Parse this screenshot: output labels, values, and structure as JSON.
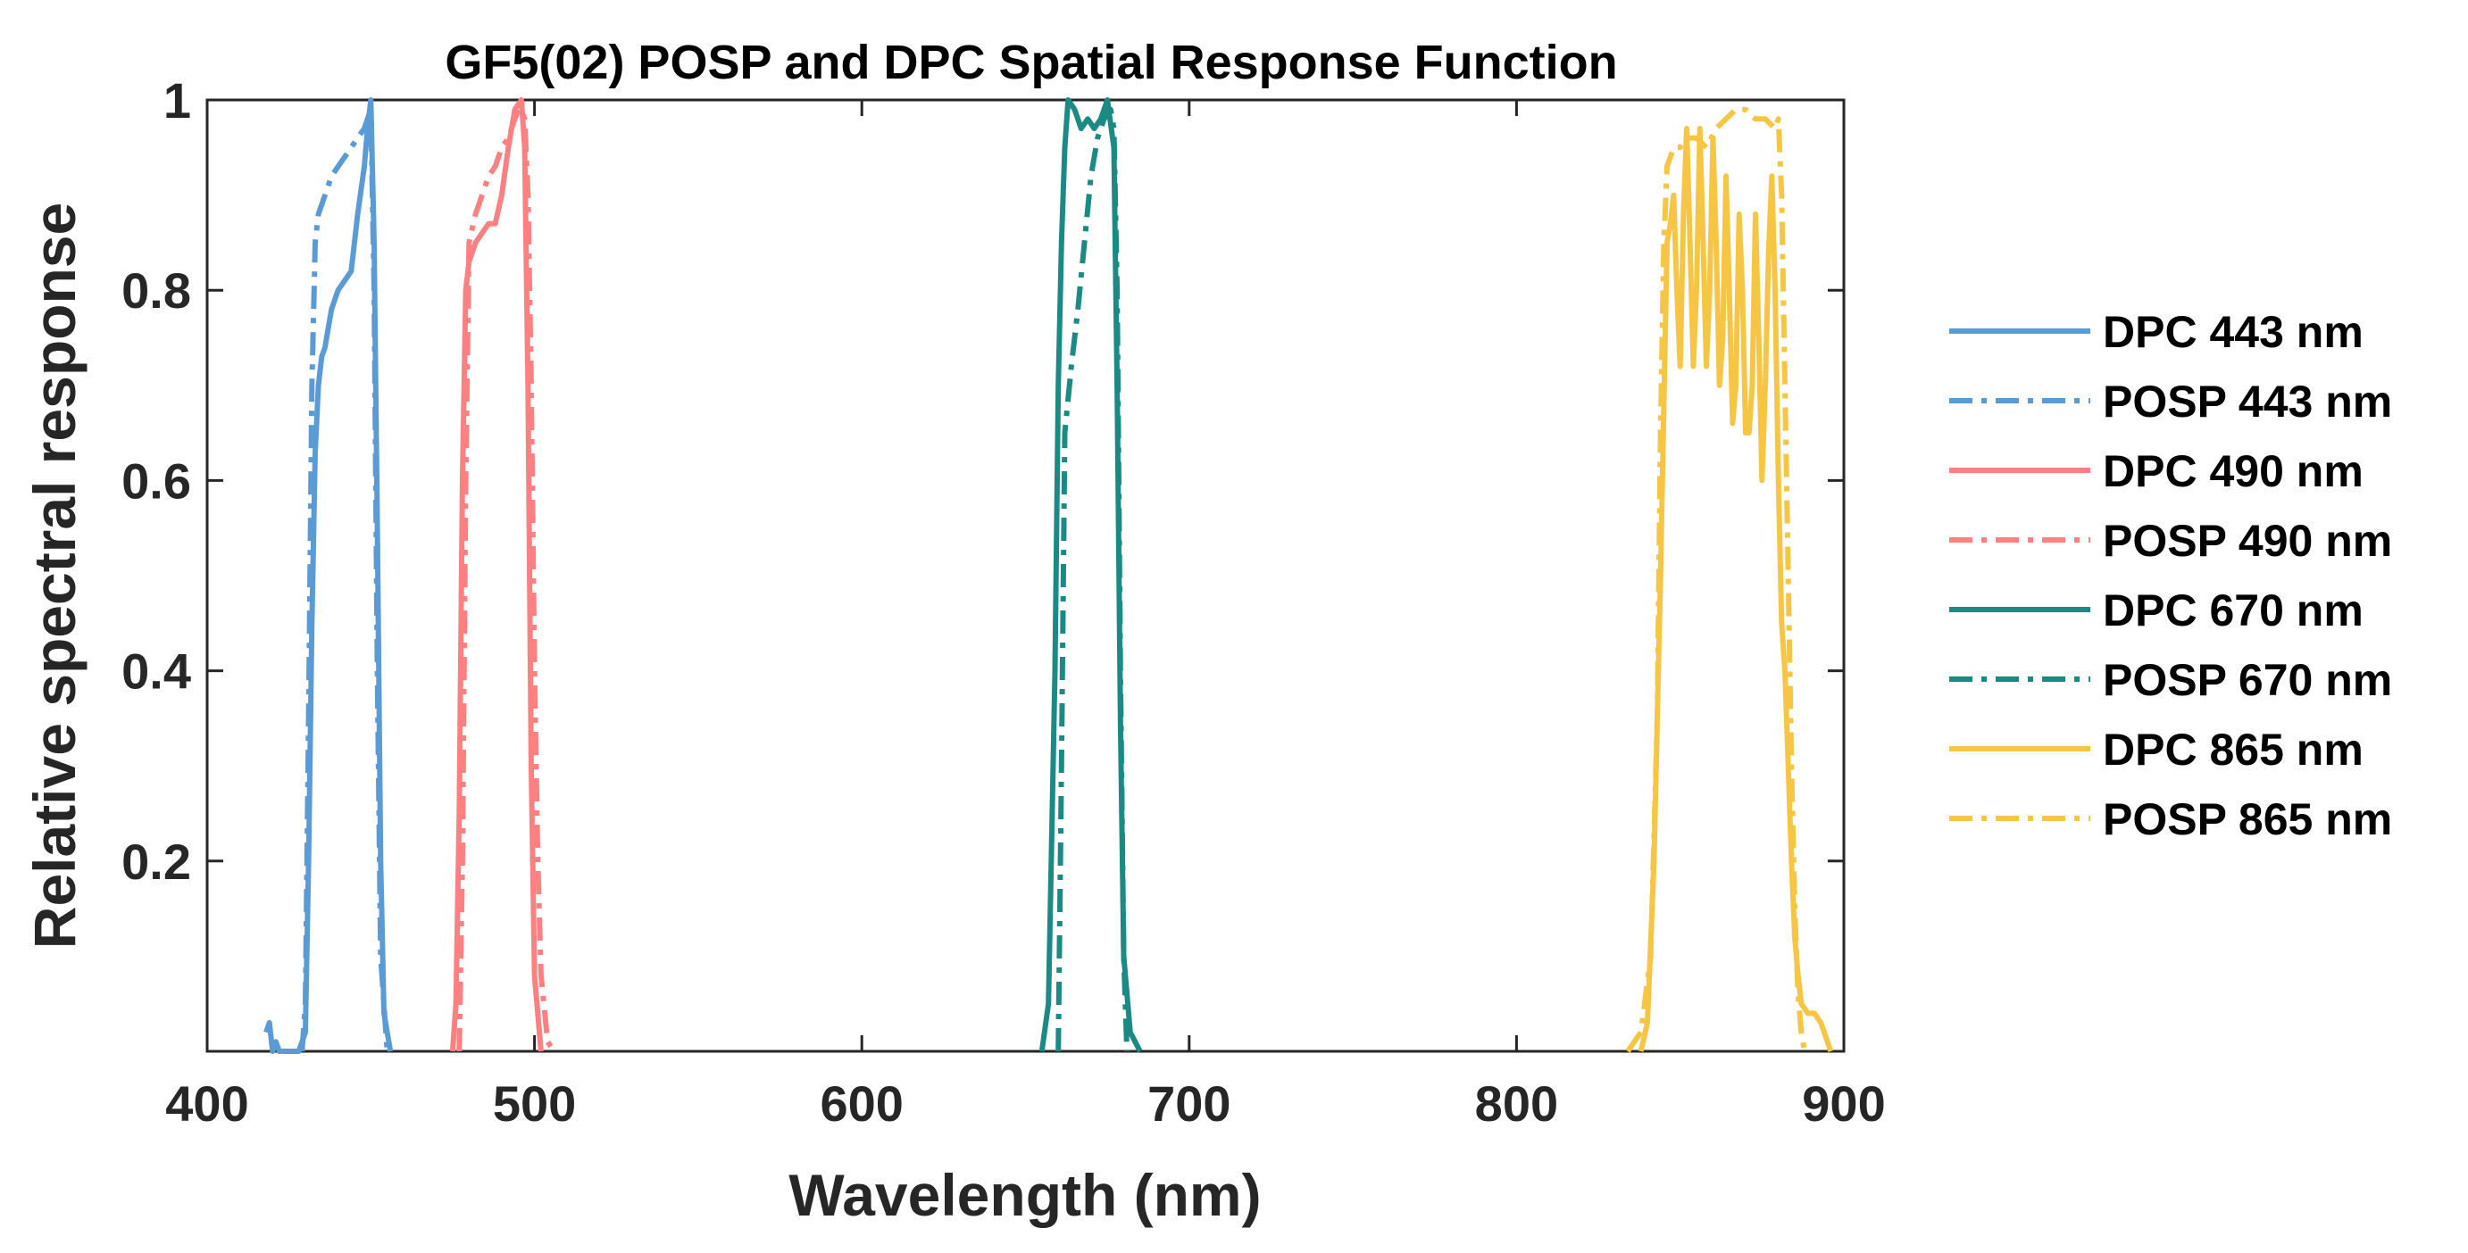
{
  "chart_data": {
    "type": "line",
    "title": "GF5(02) POSP and DPC Spatial Response Function",
    "xlabel": "Wavelength (nm)",
    "ylabel": "Relative spectral response",
    "xlim": [
      400,
      900
    ],
    "ylim": [
      0,
      1
    ],
    "xticks": [
      400,
      500,
      600,
      700,
      800,
      900
    ],
    "xtick_labels": [
      "400",
      "500",
      "600",
      "700",
      "800",
      "900"
    ],
    "yticks": [
      0.2,
      0.4,
      0.6,
      0.8,
      1
    ],
    "ytick_labels": [
      "0.2",
      "0.4",
      "0.6",
      "0.8",
      "1"
    ],
    "grid": false,
    "legend_position": "outside-right",
    "series": [
      {
        "name": "DPC 443 nm",
        "color": "#5B9BD5",
        "style": "solid",
        "points": [
          [
            418,
            0.02
          ],
          [
            419,
            0.03
          ],
          [
            420,
            0.0
          ],
          [
            421,
            0.01
          ],
          [
            422,
            0.0
          ],
          [
            428,
            0.0
          ],
          [
            430,
            0.02
          ],
          [
            431,
            0.2
          ],
          [
            432,
            0.45
          ],
          [
            433,
            0.63
          ],
          [
            434,
            0.7
          ],
          [
            435,
            0.73
          ],
          [
            436,
            0.74
          ],
          [
            437,
            0.76
          ],
          [
            438,
            0.78
          ],
          [
            440,
            0.8
          ],
          [
            442,
            0.81
          ],
          [
            444,
            0.82
          ],
          [
            446,
            0.88
          ],
          [
            448,
            0.93
          ],
          [
            449,
            0.97
          ],
          [
            450,
            1.0
          ],
          [
            451,
            0.85
          ],
          [
            452,
            0.55
          ],
          [
            453,
            0.2
          ],
          [
            454,
            0.04
          ],
          [
            456,
            0.0
          ]
        ]
      },
      {
        "name": "POSP 443 nm",
        "color": "#5B9BD5",
        "style": "dashdot",
        "points": [
          [
            429,
            0.0
          ],
          [
            430,
            0.05
          ],
          [
            431,
            0.35
          ],
          [
            432,
            0.7
          ],
          [
            433,
            0.85
          ],
          [
            434,
            0.88
          ],
          [
            436,
            0.9
          ],
          [
            438,
            0.92
          ],
          [
            440,
            0.93
          ],
          [
            442,
            0.94
          ],
          [
            444,
            0.95
          ],
          [
            446,
            0.96
          ],
          [
            448,
            0.97
          ],
          [
            449,
            0.98
          ],
          [
            450,
            0.99
          ],
          [
            451,
            0.8
          ],
          [
            452,
            0.4
          ],
          [
            453,
            0.1
          ],
          [
            455,
            0.0
          ]
        ]
      },
      {
        "name": "DPC 490 nm",
        "color": "#FF8080",
        "style": "solid",
        "points": [
          [
            475,
            0.0
          ],
          [
            476,
            0.05
          ],
          [
            477,
            0.25
          ],
          [
            478,
            0.6
          ],
          [
            479,
            0.8
          ],
          [
            480,
            0.83
          ],
          [
            482,
            0.85
          ],
          [
            484,
            0.86
          ],
          [
            486,
            0.87
          ],
          [
            488,
            0.87
          ],
          [
            490,
            0.9
          ],
          [
            492,
            0.95
          ],
          [
            494,
            0.99
          ],
          [
            496,
            1.0
          ],
          [
            497,
            0.95
          ],
          [
            498,
            0.7
          ],
          [
            499,
            0.3
          ],
          [
            500,
            0.08
          ],
          [
            502,
            0.0
          ]
        ]
      },
      {
        "name": "POSP 490 nm",
        "color": "#FF8080",
        "style": "dashdot",
        "points": [
          [
            477,
            0.0
          ],
          [
            478,
            0.2
          ],
          [
            479,
            0.6
          ],
          [
            480,
            0.85
          ],
          [
            482,
            0.88
          ],
          [
            484,
            0.9
          ],
          [
            486,
            0.92
          ],
          [
            488,
            0.93
          ],
          [
            490,
            0.95
          ],
          [
            492,
            0.96
          ],
          [
            494,
            0.98
          ],
          [
            495,
            0.99
          ],
          [
            496,
            0.99
          ],
          [
            497,
            0.98
          ],
          [
            498,
            0.9
          ],
          [
            499,
            0.7
          ],
          [
            500,
            0.4
          ],
          [
            501,
            0.2
          ],
          [
            502,
            0.08
          ],
          [
            504,
            0.01
          ],
          [
            506,
            0.0
          ]
        ]
      },
      {
        "name": "DPC 670 nm",
        "color": "#1B8A85",
        "style": "solid",
        "points": [
          [
            655,
            0.0
          ],
          [
            657,
            0.05
          ],
          [
            659,
            0.4
          ],
          [
            660,
            0.7
          ],
          [
            661,
            0.85
          ],
          [
            662,
            0.95
          ],
          [
            663,
            1.0
          ],
          [
            665,
            0.99
          ],
          [
            667,
            0.97
          ],
          [
            669,
            0.98
          ],
          [
            671,
            0.97
          ],
          [
            673,
            0.98
          ],
          [
            675,
            1.0
          ],
          [
            677,
            0.95
          ],
          [
            678,
            0.7
          ],
          [
            679,
            0.35
          ],
          [
            680,
            0.1
          ],
          [
            682,
            0.02
          ],
          [
            685,
            0.0
          ]
        ]
      },
      {
        "name": "POSP 670 nm",
        "color": "#1B8A85",
        "style": "dashdot",
        "points": [
          [
            660,
            0.0
          ],
          [
            661,
            0.3
          ],
          [
            662,
            0.65
          ],
          [
            664,
            0.72
          ],
          [
            666,
            0.78
          ],
          [
            668,
            0.85
          ],
          [
            670,
            0.92
          ],
          [
            672,
            0.96
          ],
          [
            674,
            0.98
          ],
          [
            676,
            0.99
          ],
          [
            677,
            0.97
          ],
          [
            678,
            0.8
          ],
          [
            679,
            0.4
          ],
          [
            680,
            0.1
          ],
          [
            681,
            0.0
          ]
        ]
      },
      {
        "name": "DPC 865 nm",
        "color": "#F7C544",
        "style": "solid",
        "points": [
          [
            838,
            0.0
          ],
          [
            840,
            0.03
          ],
          [
            842,
            0.2
          ],
          [
            844,
            0.5
          ],
          [
            846,
            0.85
          ],
          [
            847,
            0.87
          ],
          [
            848,
            0.9
          ],
          [
            849,
            0.8
          ],
          [
            850,
            0.72
          ],
          [
            851,
            0.88
          ],
          [
            852,
            0.97
          ],
          [
            853,
            0.85
          ],
          [
            854,
            0.72
          ],
          [
            855,
            0.8
          ],
          [
            856,
            0.97
          ],
          [
            857,
            0.85
          ],
          [
            858,
            0.72
          ],
          [
            859,
            0.8
          ],
          [
            860,
            0.96
          ],
          [
            861,
            0.85
          ],
          [
            862,
            0.7
          ],
          [
            863,
            0.75
          ],
          [
            864,
            0.92
          ],
          [
            865,
            0.8
          ],
          [
            866,
            0.66
          ],
          [
            867,
            0.7
          ],
          [
            868,
            0.88
          ],
          [
            869,
            0.8
          ],
          [
            870,
            0.65
          ],
          [
            871,
            0.65
          ],
          [
            872,
            0.7
          ],
          [
            873,
            0.88
          ],
          [
            874,
            0.75
          ],
          [
            875,
            0.6
          ],
          [
            876,
            0.7
          ],
          [
            877,
            0.84
          ],
          [
            878,
            0.92
          ],
          [
            879,
            0.8
          ],
          [
            880,
            0.6
          ],
          [
            881,
            0.45
          ],
          [
            882,
            0.4
          ],
          [
            883,
            0.3
          ],
          [
            884,
            0.2
          ],
          [
            885,
            0.12
          ],
          [
            886,
            0.08
          ],
          [
            887,
            0.05
          ],
          [
            889,
            0.04
          ],
          [
            891,
            0.04
          ],
          [
            893,
            0.03
          ],
          [
            895,
            0.01
          ],
          [
            896,
            0.0
          ]
        ]
      },
      {
        "name": "POSP 865 nm",
        "color": "#F7C544",
        "style": "dashdot",
        "points": [
          [
            834,
            0.0
          ],
          [
            838,
            0.02
          ],
          [
            841,
            0.1
          ],
          [
            843,
            0.35
          ],
          [
            844,
            0.65
          ],
          [
            845,
            0.85
          ],
          [
            846,
            0.93
          ],
          [
            848,
            0.95
          ],
          [
            850,
            0.95
          ],
          [
            852,
            0.96
          ],
          [
            855,
            0.96
          ],
          [
            858,
            0.95
          ],
          [
            861,
            0.97
          ],
          [
            864,
            0.98
          ],
          [
            867,
            0.99
          ],
          [
            870,
            0.99
          ],
          [
            873,
            0.98
          ],
          [
            876,
            0.98
          ],
          [
            879,
            0.97
          ],
          [
            880,
            0.98
          ],
          [
            881,
            0.9
          ],
          [
            882,
            0.7
          ],
          [
            883,
            0.5
          ],
          [
            884,
            0.3
          ],
          [
            885,
            0.15
          ],
          [
            886,
            0.06
          ],
          [
            887,
            0.02
          ],
          [
            888,
            0.0
          ]
        ]
      }
    ]
  }
}
